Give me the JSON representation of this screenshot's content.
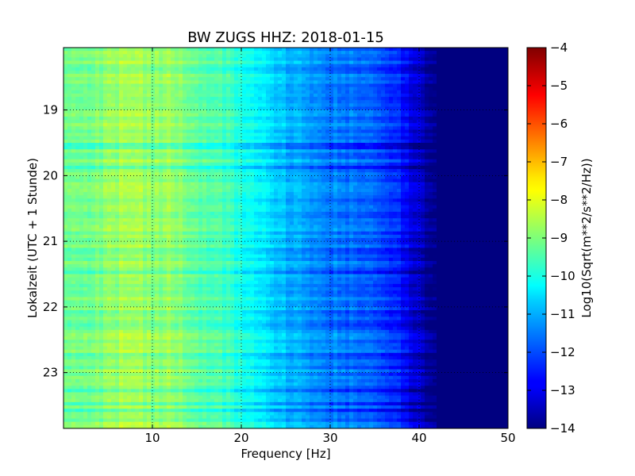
{
  "chart_data": {
    "type": "heatmap",
    "title": "BW ZUGS HHZ: 2018-01-15",
    "xlabel": "Frequency [Hz]",
    "ylabel": "Lokalzeit (UTC + 1 Stunde)",
    "xlim": [
      0,
      50
    ],
    "ylim": [
      18.05,
      23.85
    ],
    "y_axis_inverted": true,
    "x_ticks": [
      10,
      20,
      30,
      40,
      50
    ],
    "y_ticks": [
      19,
      20,
      21,
      22,
      23
    ],
    "grid": true,
    "colormap": "jet",
    "colorbar": {
      "label": "Log10(Sqrt(m**2/s**2/Hz))",
      "range": [
        -14,
        -4
      ],
      "ticks": [
        -14,
        -13,
        -12,
        -11,
        -10,
        -9,
        -8,
        -7,
        -6,
        -5,
        -4
      ],
      "tick_labels": [
        "−14",
        "−13",
        "−12",
        "−11",
        "−10",
        "−9",
        "−8",
        "−7",
        "−6",
        "−5",
        "−4"
      ]
    },
    "frequency_profile": {
      "frequency_hz": [
        0,
        2,
        4,
        6,
        8,
        10,
        12,
        14,
        16,
        18,
        20,
        22,
        24,
        26,
        28,
        30,
        32,
        34,
        36,
        38,
        40,
        41,
        42,
        44,
        50
      ],
      "value": [
        -9.2,
        -9.1,
        -9.0,
        -8.7,
        -8.5,
        -8.9,
        -8.7,
        -9.1,
        -9.4,
        -9.6,
        -9.9,
        -10.4,
        -10.8,
        -11.0,
        -11.3,
        -11.5,
        -11.6,
        -11.8,
        -12.1,
        -12.5,
        -13.2,
        -13.6,
        -14.0,
        -14.0,
        -14.0
      ]
    }
  }
}
